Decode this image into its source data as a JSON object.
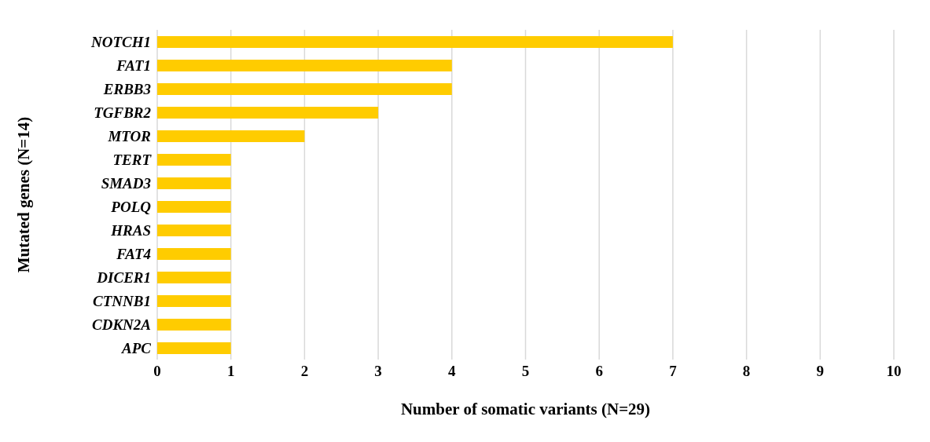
{
  "chart_data": {
    "type": "bar",
    "orientation": "horizontal",
    "xlabel": "Number of somatic variants (N=29)",
    "ylabel": "Mutated genes (N=14)",
    "categories": [
      "NOTCH1",
      "FAT1",
      "ERBB3",
      "TGFBR2",
      "MTOR",
      "TERT",
      "SMAD3",
      "POLQ",
      "HRAS",
      "FAT4",
      "DICER1",
      "CTNNB1",
      "CDKN2A",
      "APC"
    ],
    "values": [
      7,
      4,
      4,
      3,
      2,
      1,
      1,
      1,
      1,
      1,
      1,
      1,
      1,
      1
    ],
    "color": "#ffcc00",
    "xlim": [
      0,
      10
    ],
    "xticks": [
      0,
      1,
      2,
      3,
      4,
      5,
      6,
      7,
      8,
      9,
      10
    ],
    "grid": "x"
  }
}
